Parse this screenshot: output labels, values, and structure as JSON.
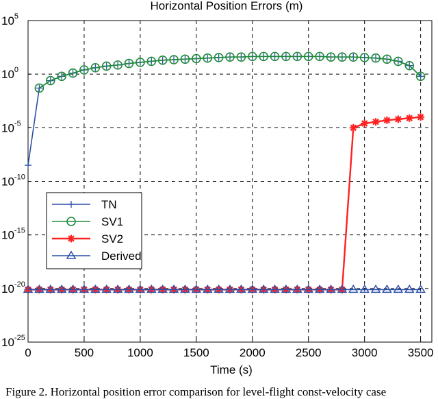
{
  "chart_data": {
    "type": "line",
    "title": "Horizontal Position Errors (m)",
    "xlabel": "Time (s)",
    "ylabel": "",
    "xlim": [
      0,
      3600
    ],
    "ylim_exponent": [
      -25,
      5
    ],
    "y_scale": "log",
    "x_ticks": [
      "0",
      "500",
      "1000",
      "1500",
      "2000",
      "2500",
      "3000",
      "3500"
    ],
    "y_ticks": [
      {
        "base": "10",
        "exp": "5"
      },
      {
        "base": "10",
        "exp": "0"
      },
      {
        "base": "10",
        "exp": "-5"
      },
      {
        "base": "10",
        "exp": "-10"
      },
      {
        "base": "10",
        "exp": "-15"
      },
      {
        "base": "10",
        "exp": "-20"
      },
      {
        "base": "10",
        "exp": "-25"
      }
    ],
    "grid": true,
    "legend_position": "left-middle",
    "series": [
      {
        "name": "TN",
        "color": "#2b4fa8",
        "marker": "plus",
        "x": [
          0,
          100,
          200,
          300,
          400,
          500,
          600,
          700,
          800,
          900,
          1000,
          1100,
          1200,
          1300,
          1400,
          1500,
          1600,
          1700,
          1800,
          1900,
          2000,
          2100,
          2200,
          2300,
          2400,
          2500,
          2600,
          2700,
          2800,
          2900,
          3000,
          3100,
          3200,
          3300,
          3400,
          3500
        ],
        "log10_y": [
          -8.5,
          -1.3,
          -0.6,
          -0.2,
          0.1,
          0.4,
          0.6,
          0.75,
          0.85,
          1.0,
          1.1,
          1.2,
          1.3,
          1.35,
          1.4,
          1.45,
          1.5,
          1.55,
          1.6,
          1.6,
          1.65,
          1.65,
          1.65,
          1.65,
          1.65,
          1.65,
          1.65,
          1.6,
          1.6,
          1.6,
          1.55,
          1.5,
          1.4,
          1.2,
          0.8,
          -0.2
        ]
      },
      {
        "name": "SV1",
        "color": "#1f8a3b",
        "marker": "circle",
        "x": [
          100,
          200,
          300,
          400,
          500,
          600,
          700,
          800,
          900,
          1000,
          1100,
          1200,
          1300,
          1400,
          1500,
          1600,
          1700,
          1800,
          1900,
          2000,
          2100,
          2200,
          2300,
          2400,
          2500,
          2600,
          2700,
          2800,
          2900,
          3000,
          3100,
          3200,
          3300,
          3400,
          3500
        ],
        "log10_y": [
          -1.3,
          -0.6,
          -0.2,
          0.1,
          0.4,
          0.6,
          0.75,
          0.85,
          1.0,
          1.1,
          1.2,
          1.3,
          1.35,
          1.4,
          1.45,
          1.5,
          1.55,
          1.6,
          1.6,
          1.65,
          1.65,
          1.65,
          1.65,
          1.65,
          1.65,
          1.65,
          1.6,
          1.6,
          1.6,
          1.55,
          1.5,
          1.4,
          1.2,
          0.8,
          -0.2
        ]
      },
      {
        "name": "SV2",
        "color": "#ff2020",
        "marker": "star",
        "x": [
          0,
          100,
          200,
          300,
          400,
          500,
          600,
          700,
          800,
          900,
          1000,
          1100,
          1200,
          1300,
          1400,
          1500,
          1600,
          1700,
          1800,
          1900,
          2000,
          2100,
          2200,
          2300,
          2400,
          2500,
          2600,
          2700,
          2800,
          2900,
          3000,
          3100,
          3200,
          3300,
          3400,
          3500
        ],
        "log10_y": [
          -20.1,
          -20.1,
          -20.1,
          -20.1,
          -20.1,
          -20.1,
          -20.1,
          -20.1,
          -20.1,
          -20.1,
          -20.1,
          -20.1,
          -20.1,
          -20.1,
          -20.1,
          -20.1,
          -20.1,
          -20.1,
          -20.1,
          -20.1,
          -20.1,
          -20.1,
          -20.1,
          -20.1,
          -20.1,
          -20.1,
          -20.1,
          -20.1,
          -20.1,
          -5.0,
          -4.6,
          -4.45,
          -4.3,
          -4.2,
          -4.1,
          -4.0
        ]
      },
      {
        "name": "Derived",
        "color": "#2b4fa8",
        "marker": "triangle",
        "x": [
          0,
          100,
          200,
          300,
          400,
          500,
          600,
          700,
          800,
          900,
          1000,
          1100,
          1200,
          1300,
          1400,
          1500,
          1600,
          1700,
          1800,
          1900,
          2000,
          2100,
          2200,
          2300,
          2400,
          2500,
          2600,
          2700,
          2800,
          2900,
          3000,
          3100,
          3200,
          3300,
          3400,
          3500
        ],
        "log10_y": [
          -20.1,
          -20.1,
          -20.1,
          -20.1,
          -20.1,
          -20.1,
          -20.1,
          -20.1,
          -20.1,
          -20.1,
          -20.1,
          -20.1,
          -20.1,
          -20.1,
          -20.1,
          -20.1,
          -20.1,
          -20.1,
          -20.1,
          -20.1,
          -20.1,
          -20.1,
          -20.1,
          -20.1,
          -20.1,
          -20.1,
          -20.1,
          -20.1,
          -20.1,
          -20.1,
          -20.1,
          -20.1,
          -20.1,
          -20.1,
          -20.1,
          -20.1
        ]
      }
    ]
  },
  "caption": "Figure 2. Horizontal position error comparison for level-flight const-velocity case"
}
